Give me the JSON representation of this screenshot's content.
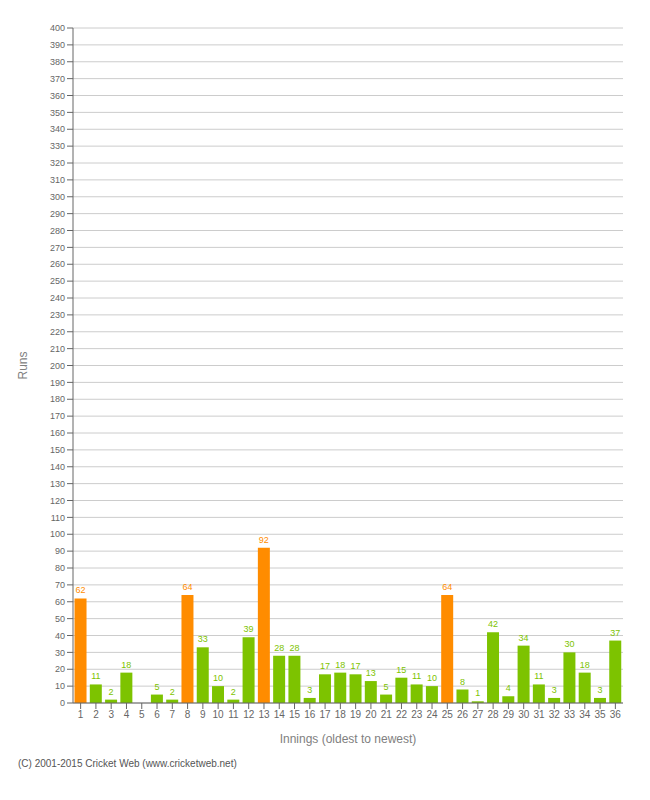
{
  "chart_data": {
    "type": "bar",
    "xlabel": "Innings (oldest to newest)",
    "ylabel": "Runs",
    "categories": [
      "1",
      "2",
      "3",
      "4",
      "5",
      "6",
      "7",
      "8",
      "9",
      "10",
      "11",
      "12",
      "13",
      "14",
      "15",
      "16",
      "17",
      "18",
      "19",
      "20",
      "21",
      "22",
      "23",
      "24",
      "25",
      "26",
      "27",
      "28",
      "29",
      "30",
      "31",
      "32",
      "33",
      "34",
      "35",
      "36"
    ],
    "values": [
      62,
      11,
      2,
      18,
      0,
      5,
      2,
      64,
      33,
      10,
      2,
      39,
      92,
      28,
      28,
      3,
      17,
      18,
      17,
      13,
      5,
      15,
      11,
      10,
      64,
      8,
      1,
      42,
      4,
      34,
      11,
      3,
      30,
      18,
      3,
      37
    ],
    "colors": [
      "#FF8C00",
      "#7DC300",
      "#7DC300",
      "#7DC300",
      "#7DC300",
      "#7DC300",
      "#7DC300",
      "#FF8C00",
      "#7DC300",
      "#7DC300",
      "#7DC300",
      "#7DC300",
      "#FF8C00",
      "#7DC300",
      "#7DC300",
      "#7DC300",
      "#7DC300",
      "#7DC300",
      "#7DC300",
      "#7DC300",
      "#7DC300",
      "#7DC300",
      "#7DC300",
      "#7DC300",
      "#FF8C00",
      "#7DC300",
      "#7DC300",
      "#7DC300",
      "#7DC300",
      "#7DC300",
      "#7DC300",
      "#7DC300",
      "#7DC300",
      "#7DC300",
      "#7DC300",
      "#7DC300"
    ],
    "ylim": [
      0,
      400
    ],
    "yticks": [
      0,
      10,
      20,
      30,
      40,
      50,
      60,
      70,
      80,
      90,
      100,
      110,
      120,
      130,
      140,
      150,
      160,
      170,
      180,
      190,
      200,
      210,
      220,
      230,
      240,
      250,
      260,
      270,
      280,
      290,
      300,
      310,
      320,
      330,
      340,
      350,
      360,
      370,
      380,
      390,
      400
    ],
    "grid": true,
    "data_labels": true,
    "annotations": [
      "(C) 2001-2015 Cricket Web (www.cricketweb.net)"
    ]
  }
}
